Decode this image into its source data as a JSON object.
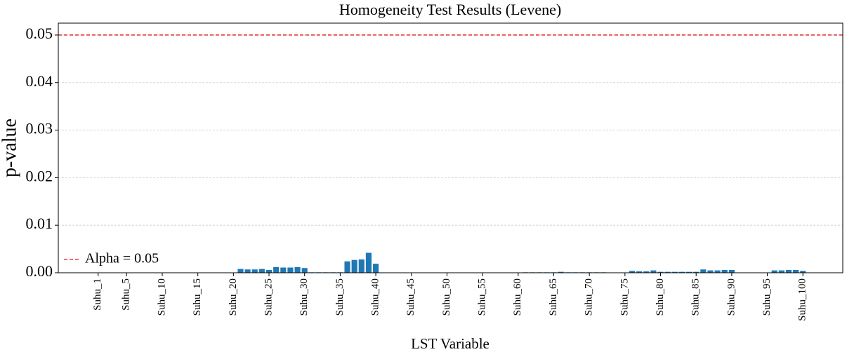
{
  "chart_data": {
    "type": "bar",
    "title": "Homogeneity Test Results (Levene)",
    "x_label": "LST Variable",
    "y_label": "p-value",
    "color": "#1f77b4",
    "grid": true,
    "categories": [
      "Suhu_1",
      null,
      null,
      null,
      "Suhu_5",
      null,
      null,
      null,
      null,
      "Suhu_10",
      null,
      null,
      null,
      null,
      "Suhu_15",
      null,
      null,
      null,
      null,
      "Suhu_20",
      null,
      null,
      null,
      null,
      "Suhu_25",
      null,
      null,
      null,
      null,
      "Suhu_30",
      null,
      null,
      null,
      null,
      "Suhu_35",
      null,
      null,
      null,
      null,
      "Suhu_40",
      null,
      null,
      null,
      null,
      "Suhu_45",
      null,
      null,
      null,
      null,
      "Suhu_50",
      null,
      null,
      null,
      null,
      "Suhu_55",
      null,
      null,
      null,
      null,
      "Suhu_60",
      null,
      null,
      null,
      null,
      "Suhu_65",
      null,
      null,
      null,
      null,
      "Suhu_70",
      null,
      null,
      null,
      null,
      "Suhu_75",
      null,
      null,
      null,
      null,
      "Suhu_80",
      null,
      null,
      null,
      null,
      "Suhu_85",
      null,
      null,
      null,
      null,
      "Suhu_90",
      null,
      null,
      null,
      null,
      "Suhu_95",
      null,
      null,
      null,
      null,
      "Suhu_100"
    ],
    "values": [
      0,
      0,
      0,
      0,
      0,
      0,
      0,
      0,
      0,
      0,
      0,
      0,
      0,
      0,
      0,
      0,
      0,
      0,
      0,
      0,
      0.0008,
      0.0007,
      0.0007,
      0.0008,
      0.0006,
      0.0012,
      0.0011,
      0.0011,
      0.0012,
      0.001,
      0.0001,
      0.0001,
      0.0001,
      0.0001,
      0.0001,
      0.0024,
      0.0027,
      0.0028,
      0.0042,
      0.0019,
      0,
      0,
      0,
      0,
      0,
      0,
      0,
      0,
      0,
      0,
      0,
      0,
      0,
      0,
      0,
      0,
      0,
      0,
      0,
      0,
      0.0001,
      0.0001,
      0.0001,
      0.0001,
      0.0001,
      0.0002,
      0.0001,
      0.0001,
      0.0001,
      0.0001,
      0.0001,
      0.0001,
      0,
      0,
      0,
      0.0004,
      0.0003,
      0.0003,
      0.0005,
      0.0002,
      0.0002,
      0.0002,
      0.0002,
      0.0002,
      0.0002,
      0.0007,
      0.0005,
      0.0005,
      0.0006,
      0.0006,
      0,
      0,
      0,
      0,
      0,
      0.0005,
      0.0005,
      0.0006,
      0.0006,
      0.0004
    ],
    "ylim": [
      0,
      0.0525
    ],
    "yticks": [
      {
        "value": 0,
        "label": "0.00"
      },
      {
        "value": 0.01,
        "label": "0.01"
      },
      {
        "value": 0.02,
        "label": "0.02"
      },
      {
        "value": 0.03,
        "label": "0.03"
      },
      {
        "value": 0.04,
        "label": "0.04"
      },
      {
        "value": 0.05,
        "label": "0.05"
      }
    ],
    "reference_line": {
      "value": 0.05,
      "label": "Alpha = 0.05",
      "color": "#e31a1c"
    },
    "legend": "lower left"
  }
}
